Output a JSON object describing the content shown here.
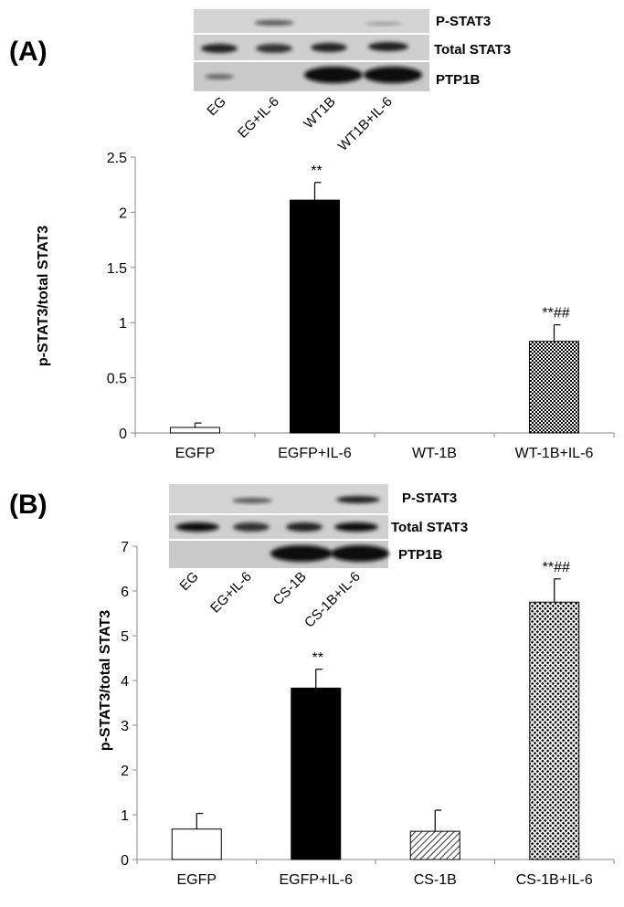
{
  "panels": [
    {
      "label": "(A)",
      "blot": {
        "bands": [
          "P-STAT3",
          "Total STAT3",
          "PTP1B"
        ],
        "lanes": [
          "EG",
          "EG+IL-6",
          "WT1B",
          "WT1B+IL-6"
        ]
      }
    },
    {
      "label": "(B)",
      "blot": {
        "bands": [
          "P-STAT3",
          "Total STAT3",
          "PTP1B"
        ],
        "lanes": [
          "EG",
          "EG+IL-6",
          "CS-1B",
          "CS-1B+IL-6"
        ]
      }
    }
  ],
  "chart_data": [
    {
      "type": "bar",
      "categories": [
        "EGFP",
        "EGFP+IL-6",
        "WT-1B",
        "WT-1B+IL-6"
      ],
      "values": [
        0.05,
        2.11,
        0,
        0.83
      ],
      "errors": [
        0.04,
        0.16,
        0,
        0.15
      ],
      "annotations": [
        "",
        "**",
        "",
        "**##"
      ],
      "fills": [
        "white",
        "black",
        "white",
        "checker"
      ],
      "ylabel": "p-STAT3/total STAT3",
      "yticks": [
        "0",
        "0.5",
        "1",
        "1.5",
        "2",
        "2.5"
      ],
      "ylim": [
        0,
        2.5
      ]
    },
    {
      "type": "bar",
      "categories": [
        "EGFP",
        "EGFP+IL-6",
        "CS-1B",
        "CS-1B+IL-6"
      ],
      "values": [
        0.68,
        3.83,
        0.63,
        5.75
      ],
      "errors": [
        0.35,
        0.42,
        0.47,
        0.52
      ],
      "annotations": [
        "",
        "**",
        "",
        "**##"
      ],
      "fills": [
        "white",
        "black",
        "hatch",
        "dots"
      ],
      "ylabel": "p-STAT3/total STAT3",
      "yticks": [
        "0",
        "1",
        "2",
        "3",
        "4",
        "5",
        "6",
        "7"
      ],
      "ylim": [
        0,
        7
      ]
    }
  ]
}
